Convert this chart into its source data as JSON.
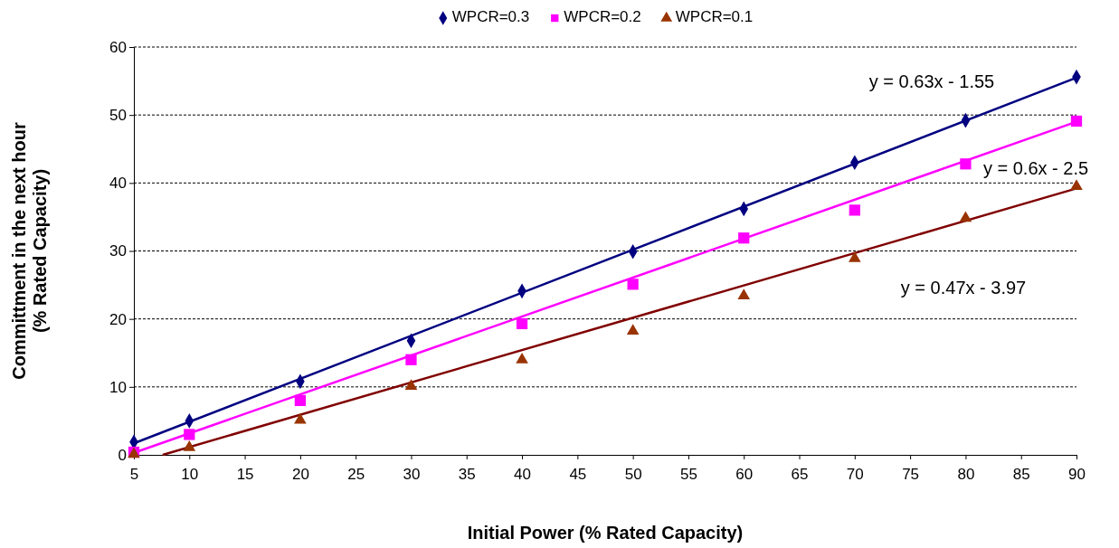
{
  "chart_data": {
    "type": "scatter",
    "xlabel": "Initial Power (% Rated Capacity)",
    "ylabel": "Committment in the next hour\n(% Rated Capacity)",
    "x": [
      5,
      10,
      20,
      30,
      40,
      50,
      60,
      70,
      80,
      90
    ],
    "series": [
      {
        "name": "WPCR=0.3",
        "color": "#000080",
        "marker": "diamond",
        "values": [
          1.9,
          5.0,
          10.8,
          16.8,
          24.1,
          29.9,
          36.2,
          43.0,
          49.2,
          55.6
        ]
      },
      {
        "name": "WPCR=0.2",
        "color": "#ff00ff",
        "marker": "square",
        "values": [
          0.4,
          3.0,
          8.0,
          14.0,
          19.3,
          25.1,
          31.9,
          36.0,
          42.8,
          49.1
        ]
      },
      {
        "name": "WPCR=0.1",
        "color": "#993300",
        "marker": "triangle",
        "values": [
          0.1,
          1.1,
          5.1,
          10.1,
          14.0,
          18.2,
          23.4,
          28.9,
          34.8,
          39.5
        ]
      },
      {
        "type": "line",
        "color": "#000080",
        "marker": "none",
        "x": [
          5,
          90
        ],
        "values": [
          1.7,
          55.5
        ]
      },
      {
        "type": "line",
        "color": "#ff00ff",
        "marker": "none",
        "x": [
          5,
          90
        ],
        "values": [
          0.3,
          49.0
        ]
      },
      {
        "type": "line",
        "color": "#800000",
        "marker": "none",
        "x": [
          7.6,
          90
        ],
        "values": [
          0,
          39.2
        ]
      }
    ],
    "xlim": [
      5,
      90
    ],
    "xticks": [
      5,
      10,
      15,
      20,
      25,
      30,
      35,
      40,
      45,
      50,
      55,
      60,
      65,
      70,
      75,
      80,
      85,
      90
    ],
    "ylim": [
      0,
      60
    ],
    "yticks": [
      0,
      10,
      20,
      30,
      40,
      50,
      60
    ],
    "grid": "y",
    "legend": "top",
    "annotations": [
      "y = 0.63x - 1.55",
      "y = 0.6x - 2.5",
      "y = 0.47x - 3.97"
    ]
  }
}
